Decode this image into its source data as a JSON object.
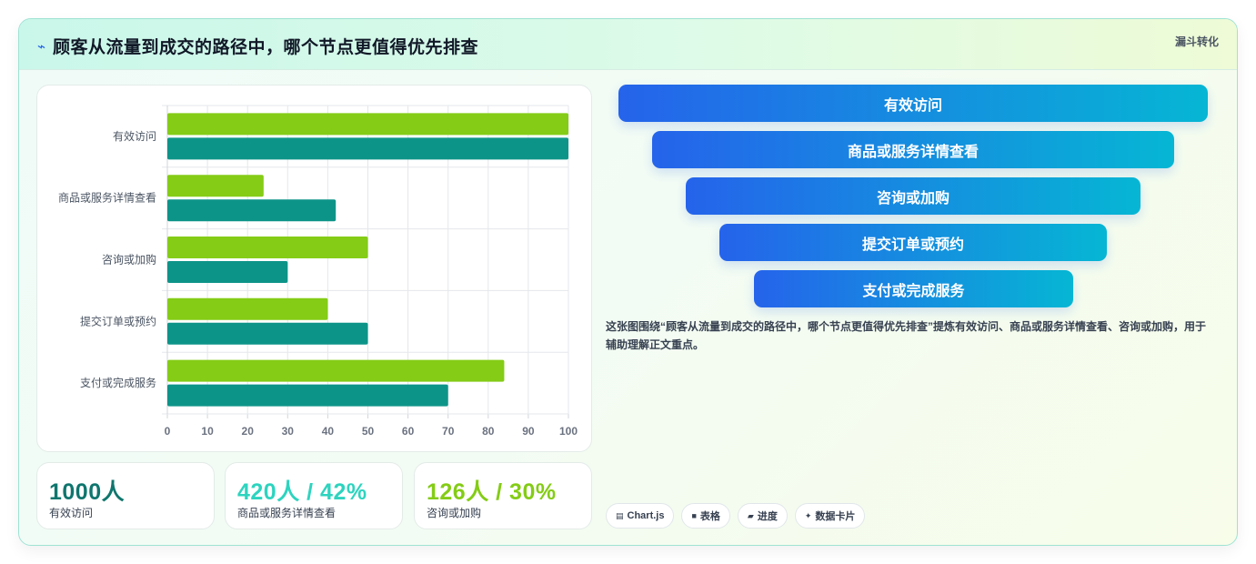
{
  "header": {
    "title": "顾客从流量到成交的路径中，哪个节点更值得优先排查",
    "tag": "漏斗转化"
  },
  "chart_data": {
    "type": "bar",
    "orientation": "horizontal",
    "categories": [
      "有效访问",
      "商品或服务详情查看",
      "咨询或加购",
      "提交订单或预约",
      "支付或完成服务"
    ],
    "series": [
      {
        "name": "",
        "color": "#84cc16",
        "values": [
          100,
          24,
          50,
          40,
          84
        ]
      },
      {
        "name": "",
        "color": "#0d9488",
        "values": [
          100,
          42,
          30,
          50,
          70
        ]
      }
    ],
    "xlim": [
      0,
      100
    ],
    "xticks": [
      0,
      10,
      20,
      30,
      40,
      50,
      60,
      70,
      80,
      90,
      100
    ],
    "grid": true
  },
  "stats": [
    {
      "value": "1000人",
      "label": "有效访问",
      "color": "#0f766e"
    },
    {
      "value": "420人 / 42%",
      "label": "商品或服务详情查看",
      "color": "#2dd4bf"
    },
    {
      "value": "126人 / 30%",
      "label": "咨询或加购",
      "color": "#84cc16"
    }
  ],
  "funnel": {
    "steps": [
      "有效访问",
      "商品或服务详情查看",
      "咨询或加购",
      "提交订单或预约",
      "支付或完成服务"
    ]
  },
  "description": "这张图围绕“顾客从流量到成交的路径中，哪个节点更值得优先排查”提炼有效访问、商品或服务详情查看、咨询或加购，用于辅助理解正文重点。",
  "chips": [
    {
      "icon": "chart-icon",
      "glyph": "▤",
      "label": "Chart.js"
    },
    {
      "icon": "table-icon",
      "glyph": "■",
      "label": "表格"
    },
    {
      "icon": "progress-icon",
      "glyph": "▰",
      "label": "进度"
    },
    {
      "icon": "card-icon",
      "glyph": "✦",
      "label": "数据卡片"
    }
  ]
}
